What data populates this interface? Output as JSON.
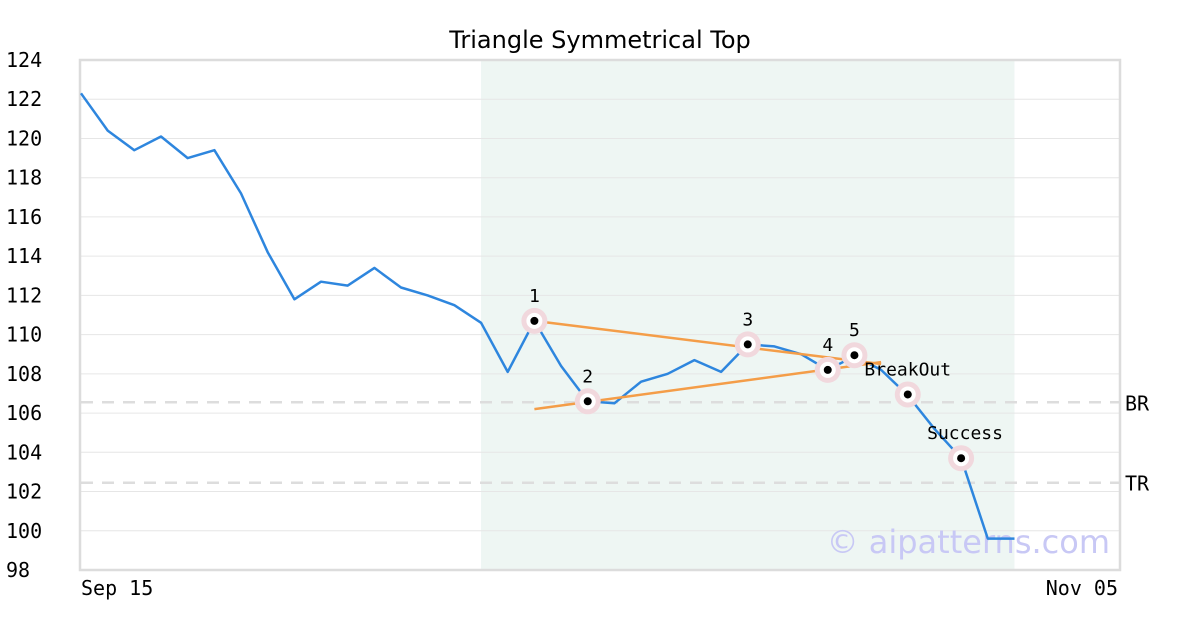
{
  "chart_data": {
    "type": "line",
    "title": "Triangle Symmetrical Top",
    "xlabel": "",
    "ylabel": "",
    "x_tick_labels": [
      "Sep 15",
      "Nov 05"
    ],
    "ylim": [
      98,
      124
    ],
    "yticks": [
      98,
      100,
      102,
      104,
      106,
      108,
      110,
      112,
      114,
      116,
      118,
      120,
      122,
      124
    ],
    "grid": true,
    "series": [
      {
        "values": [
          122.3,
          120.4,
          119.4,
          120.1,
          119.0,
          119.4,
          117.2,
          114.2,
          111.8,
          112.7,
          112.5,
          113.4,
          112.4,
          112.0,
          111.5,
          110.6,
          108.1,
          110.7,
          108.4,
          106.6,
          106.5,
          107.6,
          108.0,
          108.7,
          108.1,
          109.5,
          109.4,
          109.0,
          108.2,
          108.9,
          108.2,
          106.9,
          105.2,
          103.7,
          99.6,
          99.6
        ],
        "color": "#2e86de"
      }
    ],
    "shaded_region": {
      "x_start": 15,
      "x_end": 35,
      "color": "#eef6f3"
    },
    "trendlines": [
      {
        "x": [
          17,
          30
        ],
        "y": [
          110.7,
          108.5
        ],
        "color": "#f49d48"
      },
      {
        "x": [
          17,
          30
        ],
        "y": [
          106.2,
          108.6
        ],
        "color": "#f49d48"
      }
    ],
    "reference_lines": [
      {
        "label": "BR",
        "y": 106.55
      },
      {
        "label": "TR",
        "y": 102.45
      }
    ],
    "markers": [
      {
        "label": "1",
        "x": 17,
        "y": 110.7
      },
      {
        "label": "2",
        "x": 19,
        "y": 106.6
      },
      {
        "label": "3",
        "x": 25,
        "y": 109.5
      },
      {
        "label": "4",
        "x": 28,
        "y": 108.2
      },
      {
        "label": "5",
        "x": 29,
        "y": 108.95
      },
      {
        "label": "BreakOut",
        "x": 31,
        "y": 106.95
      },
      {
        "label": "Success",
        "x": 33,
        "y": 103.7
      }
    ],
    "watermark": "© aipatterns.com"
  },
  "colors": {
    "line": "#2e86de",
    "trendline": "#f49d48",
    "shade": "#eef6f3",
    "grid": "#e6e6e6",
    "reference": "#dddddd",
    "marker_halo": "#f1d8dd",
    "watermark": "#c8c8f5"
  }
}
